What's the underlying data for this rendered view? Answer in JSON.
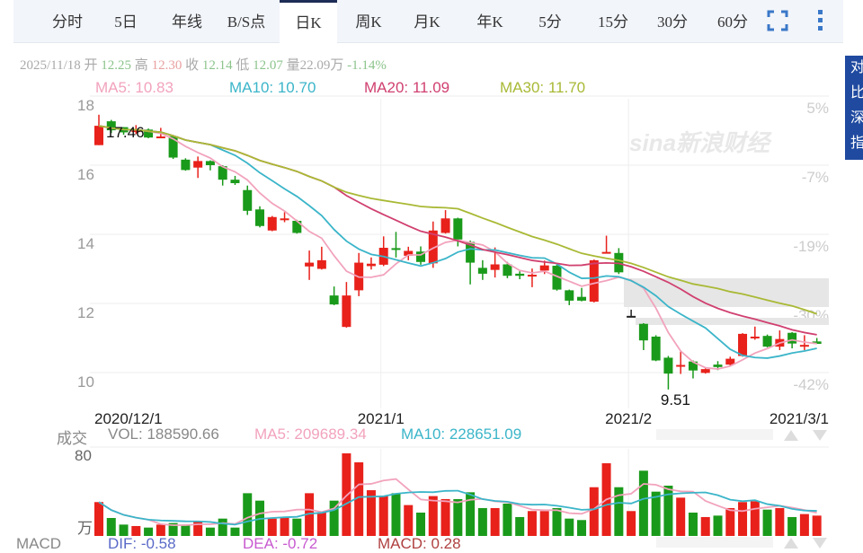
{
  "tabs": [
    {
      "label": "分时",
      "active": false
    },
    {
      "label": "5日",
      "active": false
    },
    {
      "label": "年线",
      "active": false
    },
    {
      "label": "B/S点",
      "active": false
    },
    {
      "label": "日K",
      "active": true
    },
    {
      "label": "周K",
      "active": false
    },
    {
      "label": "月K",
      "active": false
    },
    {
      "label": "年K",
      "active": false
    },
    {
      "label": "5分",
      "active": false
    },
    {
      "label": "15分",
      "active": false
    },
    {
      "label": "30分",
      "active": false
    },
    {
      "label": "60分",
      "active": false
    }
  ],
  "toolbar": {
    "fullscreen_icon": "fullscreen-icon",
    "more_icon": "more-vertical-icon"
  },
  "info": {
    "date": "2025/11/18",
    "open_label": "开",
    "open": "12.25",
    "high_label": "高",
    "high": "12.30",
    "close_label": "收",
    "close": "12.14",
    "low_label": "低",
    "low": "12.07",
    "vol_label": "量",
    "vol": "22.09万",
    "change": "-1.14%"
  },
  "ma_legend": {
    "ma5": "MA5: 10.83",
    "ma10": "MA10: 10.70",
    "ma20": "MA20: 11.09",
    "ma30": "MA30: 11.70"
  },
  "side_button": {
    "label": "对比深指"
  },
  "volume_legend": {
    "title": "成交",
    "vol": "VOL: 188590.66",
    "ma5": "MA5: 209689.34",
    "ma10": "MA10: 228651.09",
    "axis_top": "80",
    "axis_unit": "万"
  },
  "macd_legend": {
    "title": "MACD",
    "dif": "DIF: -0.58",
    "dea": "DEA: -0.72",
    "macd": "MACD: 0.28"
  },
  "watermark": "sina新浪财经",
  "colors": {
    "up": "#e8211b",
    "down": "#1a9a1a",
    "ma5": "#f2a3bc",
    "ma10": "#3bb5c9",
    "ma20": "#d0406f",
    "ma30": "#a9b935",
    "accent": "#1e2d55",
    "side": "#1f4aa0"
  },
  "chart_data": {
    "type": "candlestick",
    "y_ticks": [
      "18",
      "16",
      "14",
      "12",
      "10"
    ],
    "ylim": [
      9.2,
      18.2
    ],
    "right_ticks": [
      "5%",
      "-7%",
      "-19%",
      "-30%",
      "-42%"
    ],
    "x_labels": [
      {
        "label": "2020/12/1",
        "index": 0
      },
      {
        "label": "2021/1",
        "index": 23
      },
      {
        "label": "2021/2",
        "index": 43
      },
      {
        "label": "2021/3/1",
        "index": 57
      }
    ],
    "max_label": "17.46",
    "min_label": "9.51",
    "grid": true,
    "ohlc": [
      [
        16.58,
        17.46,
        16.58,
        17.14
      ],
      [
        17.27,
        17.31,
        16.93,
        17.01
      ],
      [
        17.1,
        17.1,
        16.88,
        16.95
      ],
      [
        16.97,
        17.16,
        16.9,
        17.01
      ],
      [
        17.03,
        17.06,
        16.78,
        16.8
      ],
      [
        16.8,
        17.08,
        16.8,
        16.83
      ],
      [
        16.84,
        16.86,
        16.18,
        16.22
      ],
      [
        16.16,
        16.2,
        15.84,
        15.86
      ],
      [
        15.93,
        16.25,
        15.63,
        16.12
      ],
      [
        16.12,
        16.14,
        15.85,
        16.0
      ],
      [
        15.97,
        16.0,
        15.41,
        15.58
      ],
      [
        15.58,
        15.69,
        15.43,
        15.48
      ],
      [
        15.28,
        15.41,
        14.56,
        14.68
      ],
      [
        14.72,
        14.81,
        14.2,
        14.24
      ],
      [
        14.11,
        14.53,
        14.09,
        14.5
      ],
      [
        14.43,
        14.64,
        14.35,
        14.46
      ],
      [
        14.39,
        14.42,
        14.02,
        14.04
      ],
      [
        13.07,
        13.53,
        12.68,
        13.18
      ],
      [
        13.0,
        13.64,
        12.98,
        13.25
      ],
      [
        12.23,
        12.49,
        11.95,
        11.97
      ],
      [
        11.32,
        12.62,
        11.3,
        12.23
      ],
      [
        12.38,
        13.46,
        12.21,
        13.18
      ],
      [
        13.08,
        13.33,
        12.98,
        13.15
      ],
      [
        13.12,
        13.94,
        13.08,
        13.61
      ],
      [
        13.6,
        14.07,
        13.33,
        13.55
      ],
      [
        13.38,
        13.64,
        13.25,
        13.52
      ],
      [
        13.5,
        13.65,
        13.12,
        13.2
      ],
      [
        13.16,
        14.37,
        13.03,
        14.11
      ],
      [
        14.04,
        14.7,
        14.02,
        14.46
      ],
      [
        14.46,
        14.48,
        13.65,
        13.85
      ],
      [
        13.78,
        13.82,
        12.55,
        13.18
      ],
      [
        13.03,
        13.25,
        12.68,
        12.86
      ],
      [
        12.97,
        13.62,
        12.75,
        13.13
      ],
      [
        13.13,
        13.2,
        12.73,
        12.8
      ],
      [
        12.86,
        12.93,
        12.7,
        12.8
      ],
      [
        12.8,
        13.01,
        12.47,
        12.83
      ],
      [
        12.95,
        13.24,
        12.85,
        13.1
      ],
      [
        13.09,
        13.12,
        12.37,
        12.4
      ],
      [
        12.38,
        12.4,
        11.95,
        12.08
      ],
      [
        12.19,
        12.45,
        12.06,
        12.08
      ],
      [
        12.05,
        13.27,
        12.03,
        13.25
      ],
      [
        13.46,
        13.96,
        13.46,
        13.49
      ],
      [
        13.46,
        13.6,
        12.85,
        12.9
      ],
      [
        11.64,
        11.82,
        11.62,
        11.64
      ],
      [
        11.41,
        11.43,
        10.65,
        10.93
      ],
      [
        11.04,
        11.08,
        10.33,
        10.35
      ],
      [
        10.43,
        10.48,
        9.51,
        9.97
      ],
      [
        10.18,
        10.61,
        9.96,
        10.22
      ],
      [
        10.32,
        10.35,
        9.83,
        10.06
      ],
      [
        9.99,
        10.12,
        9.97,
        10.1
      ],
      [
        10.23,
        10.33,
        10.07,
        10.16
      ],
      [
        10.23,
        10.46,
        10.2,
        10.4
      ],
      [
        10.48,
        11.14,
        10.46,
        11.12
      ],
      [
        11.0,
        11.33,
        10.95,
        11.04
      ],
      [
        11.06,
        11.1,
        10.73,
        10.75
      ],
      [
        10.75,
        11.22,
        10.65,
        10.97
      ],
      [
        11.15,
        11.17,
        10.7,
        10.84
      ],
      [
        10.77,
        11.08,
        10.65,
        10.8
      ],
      [
        10.9,
        11.0,
        10.83,
        10.83
      ]
    ],
    "volume_unit": "万",
    "volume_ylim": [
      0,
      80
    ],
    "volume": [
      32.8,
      17.4,
      11,
      9.6,
      8.1,
      11,
      12.5,
      11,
      13.9,
      8.1,
      16.8,
      8.1,
      41.4,
      34.2,
      16.8,
      18.3,
      16.8,
      41.4,
      22.6,
      34.2,
      80,
      71.3,
      44.3,
      38.6,
      41.4,
      29.9,
      22.6,
      38.6,
      35.7,
      35.7,
      42.3,
      27,
      27,
      31.3,
      18.3,
      24.1,
      24.1,
      27,
      16.8,
      15.4,
      47.2,
      70.4,
      47.2,
      24.1,
      63.2,
      42.9,
      48.7,
      37.1,
      22.6,
      18.3,
      19.7,
      27,
      32.8,
      33.6,
      25.5,
      27,
      18.3,
      21.2,
      19.7
    ],
    "volume_up": [
      1,
      0,
      0,
      1,
      0,
      1,
      0,
      0,
      1,
      0,
      0,
      0,
      0,
      0,
      1,
      1,
      0,
      1,
      1,
      0,
      1,
      1,
      1,
      1,
      0,
      1,
      0,
      1,
      1,
      0,
      0,
      0,
      1,
      0,
      0,
      1,
      1,
      0,
      0,
      0,
      1,
      1,
      0,
      1,
      0,
      0,
      0,
      1,
      0,
      1,
      0,
      1,
      1,
      1,
      0,
      1,
      0,
      1,
      1
    ]
  }
}
